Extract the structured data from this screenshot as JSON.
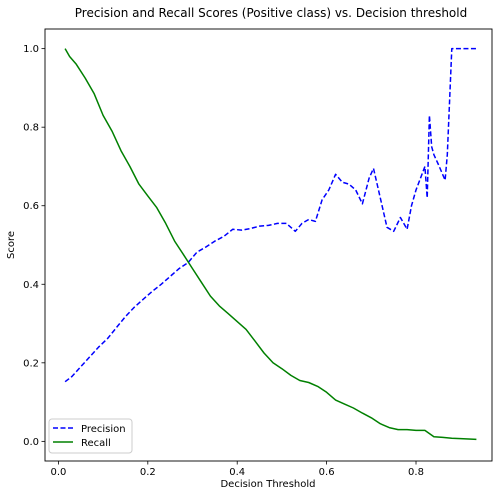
{
  "chart_data": {
    "type": "line",
    "title": "Precision and Recall Scores (Positive class) vs. Decision threshold",
    "xlabel": "Decision Threshold",
    "ylabel": "Score",
    "xlim": [
      -0.03,
      0.97
    ],
    "ylim": [
      -0.05,
      1.05
    ],
    "xticks": [
      0.0,
      0.2,
      0.4,
      0.6,
      0.8
    ],
    "xtick_labels": [
      "0.0",
      "0.2",
      "0.4",
      "0.6",
      "0.8"
    ],
    "yticks": [
      0.0,
      0.2,
      0.4,
      0.6,
      0.8,
      1.0
    ],
    "ytick_labels": [
      "0.0",
      "0.2",
      "0.4",
      "0.6",
      "0.8",
      "1.0"
    ],
    "grid": false,
    "legend_position": "lower-left",
    "series": [
      {
        "name": "Precision",
        "color": "#0000ff",
        "style": "dashed",
        "x": [
          0.015,
          0.03,
          0.05,
          0.07,
          0.09,
          0.11,
          0.13,
          0.15,
          0.17,
          0.19,
          0.21,
          0.23,
          0.25,
          0.27,
          0.29,
          0.31,
          0.33,
          0.35,
          0.37,
          0.39,
          0.41,
          0.43,
          0.45,
          0.47,
          0.49,
          0.51,
          0.53,
          0.545,
          0.56,
          0.575,
          0.59,
          0.605,
          0.62,
          0.635,
          0.65,
          0.665,
          0.68,
          0.695,
          0.705,
          0.72,
          0.735,
          0.75,
          0.765,
          0.78,
          0.79,
          0.8,
          0.81,
          0.82,
          0.825,
          0.83,
          0.835,
          0.84,
          0.85,
          0.865,
          0.87,
          0.88,
          0.9,
          0.935
        ],
        "values": [
          0.152,
          0.165,
          0.19,
          0.215,
          0.24,
          0.262,
          0.29,
          0.318,
          0.342,
          0.362,
          0.382,
          0.4,
          0.42,
          0.44,
          0.455,
          0.482,
          0.495,
          0.51,
          0.522,
          0.54,
          0.538,
          0.542,
          0.548,
          0.55,
          0.555,
          0.555,
          0.535,
          0.555,
          0.565,
          0.56,
          0.615,
          0.64,
          0.68,
          0.66,
          0.655,
          0.64,
          0.605,
          0.67,
          0.695,
          0.62,
          0.545,
          0.535,
          0.57,
          0.54,
          0.6,
          0.64,
          0.67,
          0.7,
          0.62,
          0.83,
          0.75,
          0.73,
          0.705,
          0.665,
          0.73,
          1.0,
          1.0,
          1.0
        ]
      },
      {
        "name": "Recall",
        "color": "#008000",
        "style": "solid",
        "x": [
          0.015,
          0.025,
          0.04,
          0.06,
          0.08,
          0.1,
          0.12,
          0.14,
          0.16,
          0.18,
          0.2,
          0.22,
          0.24,
          0.26,
          0.28,
          0.3,
          0.32,
          0.34,
          0.36,
          0.38,
          0.4,
          0.42,
          0.44,
          0.46,
          0.48,
          0.5,
          0.52,
          0.54,
          0.56,
          0.58,
          0.6,
          0.62,
          0.64,
          0.66,
          0.68,
          0.7,
          0.72,
          0.74,
          0.76,
          0.78,
          0.8,
          0.82,
          0.84,
          0.86,
          0.88,
          0.9,
          0.935
        ],
        "values": [
          1.0,
          0.98,
          0.96,
          0.925,
          0.885,
          0.83,
          0.79,
          0.74,
          0.7,
          0.655,
          0.625,
          0.595,
          0.555,
          0.51,
          0.475,
          0.44,
          0.405,
          0.37,
          0.345,
          0.325,
          0.305,
          0.285,
          0.255,
          0.225,
          0.2,
          0.185,
          0.168,
          0.155,
          0.15,
          0.14,
          0.125,
          0.105,
          0.095,
          0.085,
          0.072,
          0.06,
          0.045,
          0.035,
          0.03,
          0.03,
          0.028,
          0.028,
          0.012,
          0.01,
          0.008,
          0.007,
          0.005
        ]
      }
    ]
  }
}
